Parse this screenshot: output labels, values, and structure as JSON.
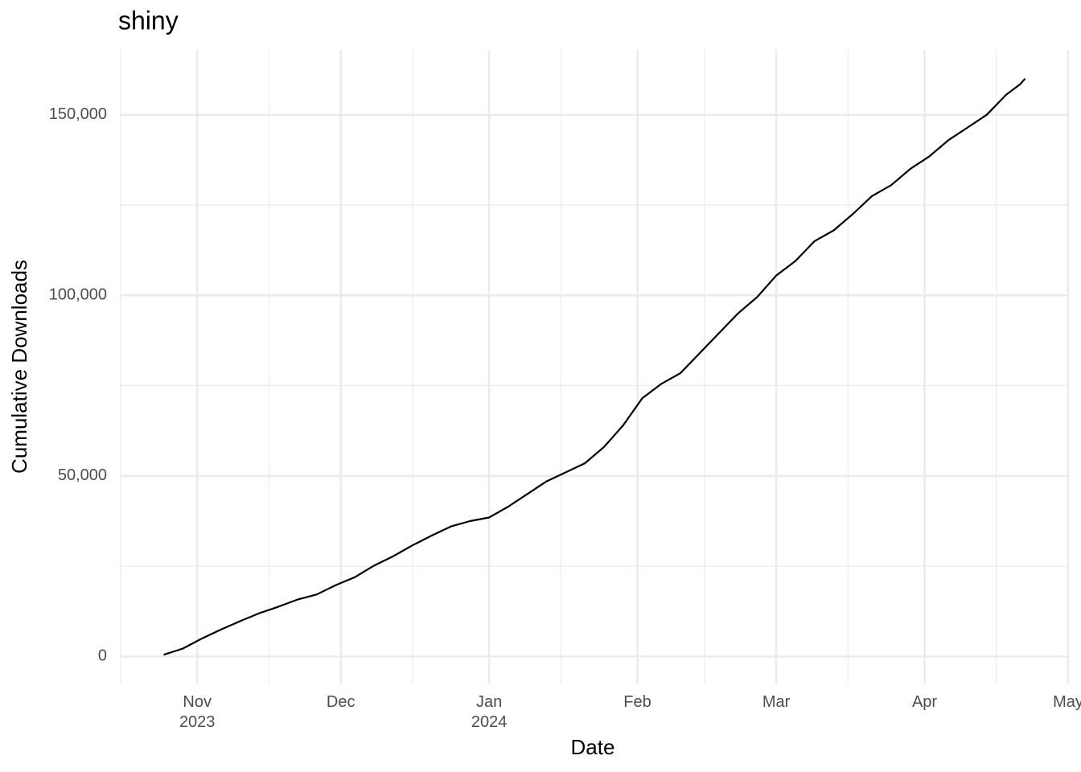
{
  "chart_data": {
    "type": "line",
    "title": "shiny",
    "x_label": "Date",
    "y_label": "Cumulative Downloads",
    "x": [
      19655,
      19659,
      19663,
      19667,
      19671,
      19675,
      19679,
      19683,
      19687,
      19691,
      19695,
      19699,
      19703,
      19707,
      19711,
      19715,
      19719,
      19723,
      19727,
      19731,
      19735,
      19739,
      19743,
      19747,
      19751,
      19755,
      19759,
      19763,
      19767,
      19771,
      19775,
      19779,
      19783,
      19787,
      19791,
      19795,
      19799,
      19803,
      19807,
      19811,
      19815,
      19819,
      19823,
      19827,
      19831,
      19834,
      19835
    ],
    "series": [
      {
        "name": "shiny",
        "color": "#000000",
        "values": [
          500,
          2200,
          5000,
          7500,
          9800,
          12000,
          13800,
          15800,
          17200,
          19800,
          22000,
          25200,
          27800,
          30800,
          33500,
          36000,
          37500,
          38500,
          41500,
          45000,
          48500,
          51000,
          53500,
          58000,
          64000,
          71500,
          75500,
          78500,
          84000,
          89500,
          95000,
          99500,
          105500,
          109500,
          115000,
          118000,
          122500,
          127500,
          130500,
          135000,
          138500,
          143000,
          146500,
          150000,
          155500,
          158500,
          160000
        ]
      }
    ],
    "xlim": [
      19646,
      19844
    ],
    "xticks": [
      {
        "value": 19662,
        "label": "Nov\n2023"
      },
      {
        "value": 19692,
        "label": "Dec"
      },
      {
        "value": 19723,
        "label": "Jan\n2024"
      },
      {
        "value": 19754,
        "label": "Feb"
      },
      {
        "value": 19783,
        "label": "Mar"
      },
      {
        "value": 19814,
        "label": "Apr"
      },
      {
        "value": 19844,
        "label": "May"
      }
    ],
    "xminorticks": [
      19646,
      19677,
      19707,
      19738,
      19768,
      19798,
      19829
    ],
    "ylim": [
      -7475,
      167975
    ],
    "yticks": [
      0,
      {
        "value": 50000,
        "label": "50,000"
      },
      {
        "value": 100000,
        "label": "100,000"
      },
      {
        "value": 150000,
        "label": "150,000"
      }
    ],
    "yminorticks": [
      25000,
      75000,
      125000
    ],
    "grid": true
  }
}
